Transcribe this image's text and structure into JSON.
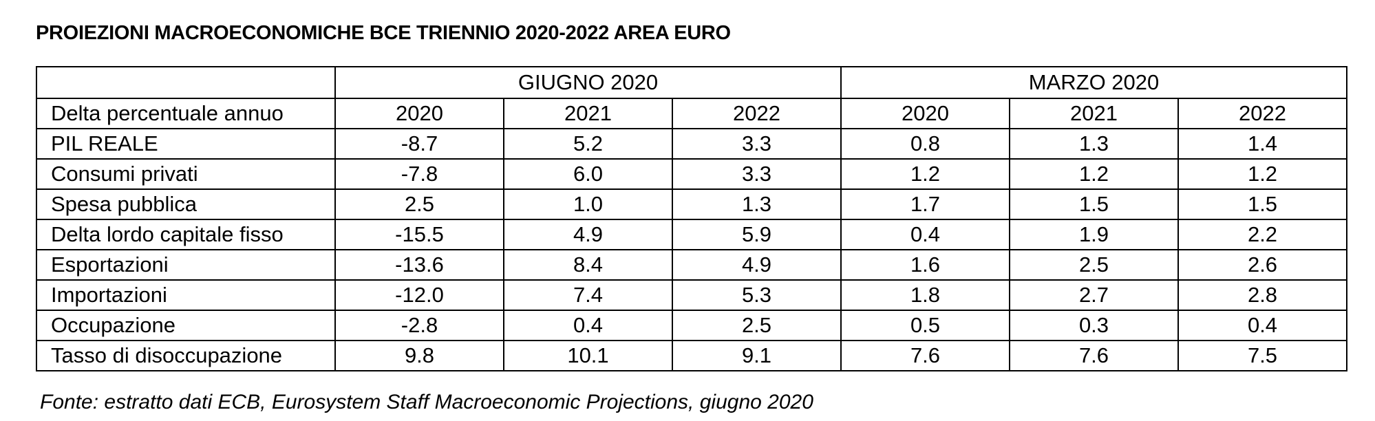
{
  "title": "PROIEZIONI MACROECONOMICHE BCE TRIENNIO 2020-2022 AREA EURO",
  "table": {
    "groups": [
      "GIUGNO  2020",
      "MARZO 2020"
    ],
    "row_header": "Delta percentuale annuo",
    "years": [
      "2020",
      "2021",
      "2022",
      "2020",
      "2021",
      "2022"
    ],
    "rows": [
      {
        "label": "PIL REALE",
        "values": [
          "-8.7",
          "5.2",
          "3.3",
          "0.8",
          "1.3",
          "1.4"
        ]
      },
      {
        "label": "Consumi privati",
        "values": [
          "-7.8",
          "6.0",
          "3.3",
          "1.2",
          "1.2",
          "1.2"
        ]
      },
      {
        "label": "Spesa pubblica",
        "values": [
          "2.5",
          "1.0",
          "1.3",
          "1.7",
          "1.5",
          "1.5"
        ]
      },
      {
        "label": "Delta lordo capitale fisso",
        "values": [
          "-15.5",
          "4.9",
          "5.9",
          "0.4",
          "1.9",
          "2.2"
        ]
      },
      {
        "label": "Esportazioni",
        "values": [
          "-13.6",
          "8.4",
          "4.9",
          "1.6",
          "2.5",
          "2.6"
        ]
      },
      {
        "label": "Importazioni",
        "values": [
          "-12.0",
          "7.4",
          "5.3",
          "1.8",
          "2.7",
          "2.8"
        ]
      },
      {
        "label": "Occupazione",
        "values": [
          "-2.8",
          "0.4",
          "2.5",
          "0.5",
          "0.3",
          "0.4"
        ]
      },
      {
        "label": "Tasso di disoccupazione",
        "values": [
          "9.8",
          "10.1",
          "9.1",
          "7.6",
          "7.6",
          "7.5"
        ]
      }
    ]
  },
  "source": "Fonte: estratto dati ECB, Eurosystem Staff Macroeconomic Projections, giugno 2020"
}
